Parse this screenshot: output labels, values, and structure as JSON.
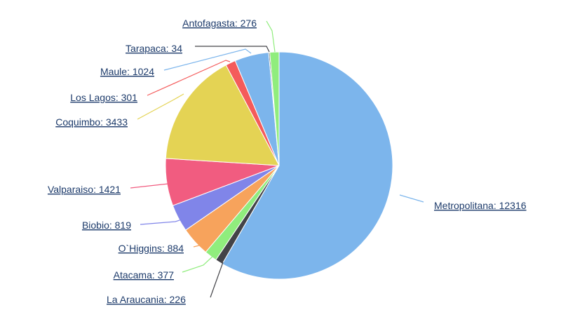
{
  "chart_data": {
    "type": "pie",
    "title": "",
    "legend": "none",
    "series": [
      {
        "slices": [
          {
            "name": "Metropolitana",
            "value": 12316,
            "label": "Metropolitana: 12316",
            "color": "#7cb5ec"
          },
          {
            "name": "La Araucania",
            "value": 226,
            "label": "La Araucania: 226",
            "color": "#434348"
          },
          {
            "name": "Atacama",
            "value": 377,
            "label": "Atacama: 377",
            "color": "#90ed7d"
          },
          {
            "name": "O`Higgins",
            "value": 884,
            "label": "O`Higgins: 884",
            "color": "#f7a35c"
          },
          {
            "name": "Biobio",
            "value": 819,
            "label": "Biobio: 819",
            "color": "#8085e9"
          },
          {
            "name": "Valparaiso",
            "value": 1421,
            "label": "Valparaiso: 1421",
            "color": "#f15c80"
          },
          {
            "name": "Coquimbo",
            "value": 3433,
            "label": "Coquimbo: 3433",
            "color": "#e4d354"
          },
          {
            "name": "Los Lagos",
            "value": 301,
            "label": "Los Lagos: 301",
            "color": "#f45b5b"
          },
          {
            "name": "Maule",
            "value": 1024,
            "label": "Maule: 1024",
            "color": "#7cb5ec"
          },
          {
            "name": "Tarapaca",
            "value": 34,
            "label": "Tarapaca: 34",
            "color": "#434348"
          },
          {
            "name": "Antofagasta",
            "value": 276,
            "label": "Antofagasta: 276",
            "color": "#90ed7d"
          }
        ]
      }
    ]
  }
}
